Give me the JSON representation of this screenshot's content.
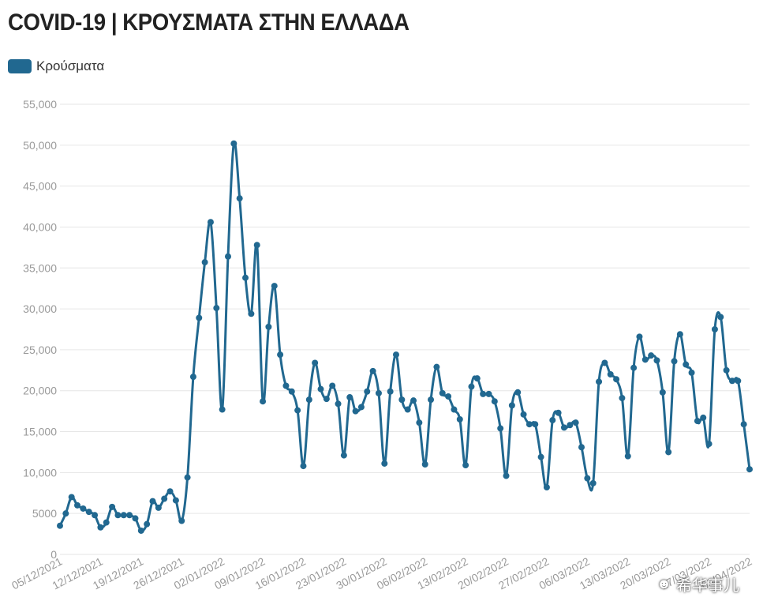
{
  "header": {
    "title": "COVID-19 | ΚΡΟΥΣΜΑΤΑ ΣΤΗΝ ΕΛΛΑΔΑ"
  },
  "watermark": {
    "text": "希华事儿",
    "icon": "wechat-icon"
  },
  "colors": {
    "series": "#216890",
    "grid": "#e6e6e6",
    "axis_text": "#9a9a9a"
  },
  "chart_data": {
    "type": "line",
    "title": "COVID-19 | ΚΡΟΥΣΜΑΤΑ ΣΤΗΝ ΕΛΛΑΔΑ",
    "xlabel": "",
    "ylabel": "",
    "ylim": [
      0,
      55000
    ],
    "y_ticks": [
      0,
      5000,
      10000,
      15000,
      20000,
      25000,
      30000,
      35000,
      40000,
      45000,
      50000,
      55000
    ],
    "y_tick_labels": [
      "0",
      "5000",
      "10,000",
      "15,000",
      "20,000",
      "25,000",
      "30,000",
      "35,000",
      "40,000",
      "45,000",
      "50,000",
      "55,000"
    ],
    "x_tick_labels": [
      "05/12/2021",
      "12/12/2021",
      "19/12/2021",
      "26/12/2021",
      "02/01/2022",
      "09/01/2022",
      "16/01/2022",
      "23/01/2022",
      "30/01/2022",
      "06/02/2022",
      "13/02/2022",
      "20/02/2022",
      "27/02/2022",
      "06/03/2022",
      "13/03/2022",
      "20/03/2022",
      "27/03/2022",
      "03/04/2022"
    ],
    "grid": true,
    "legend": "top-left",
    "series": [
      {
        "name": "Κρούσματα",
        "values": [
          3500,
          5000,
          7000,
          6000,
          5600,
          5200,
          4800,
          3300,
          3900,
          5800,
          4800,
          4800,
          4800,
          4400,
          2900,
          3700,
          6500,
          5700,
          6800,
          7700,
          6600,
          4100,
          9400,
          21700,
          28900,
          35700,
          40600,
          30100,
          17700,
          36400,
          50200,
          43500,
          33800,
          29400,
          37800,
          18700,
          27800,
          32800,
          24400,
          20600,
          19900,
          17600,
          10800,
          18900,
          23400,
          20200,
          19000,
          20600,
          18400,
          12100,
          19200,
          17500,
          18000,
          19900,
          22400,
          19700,
          11100,
          19900,
          24400,
          18900,
          17700,
          18800,
          16100,
          11000,
          18900,
          22900,
          19700,
          19300,
          17700,
          16500,
          10900,
          20500,
          21500,
          19600,
          19600,
          18700,
          15400,
          9600,
          18200,
          19800,
          17100,
          15900,
          15900,
          11900,
          8200,
          16400,
          17300,
          15500,
          15800,
          16100,
          13100,
          9300,
          8700,
          21100,
          23400,
          22000,
          21400,
          19100,
          12000,
          22800,
          26600,
          23800,
          24300,
          23700,
          19800,
          12500,
          23600,
          26900,
          23200,
          22200,
          16300,
          16700,
          13500,
          27500,
          29000,
          22500,
          21200,
          21200,
          15900,
          10400
        ]
      }
    ]
  }
}
